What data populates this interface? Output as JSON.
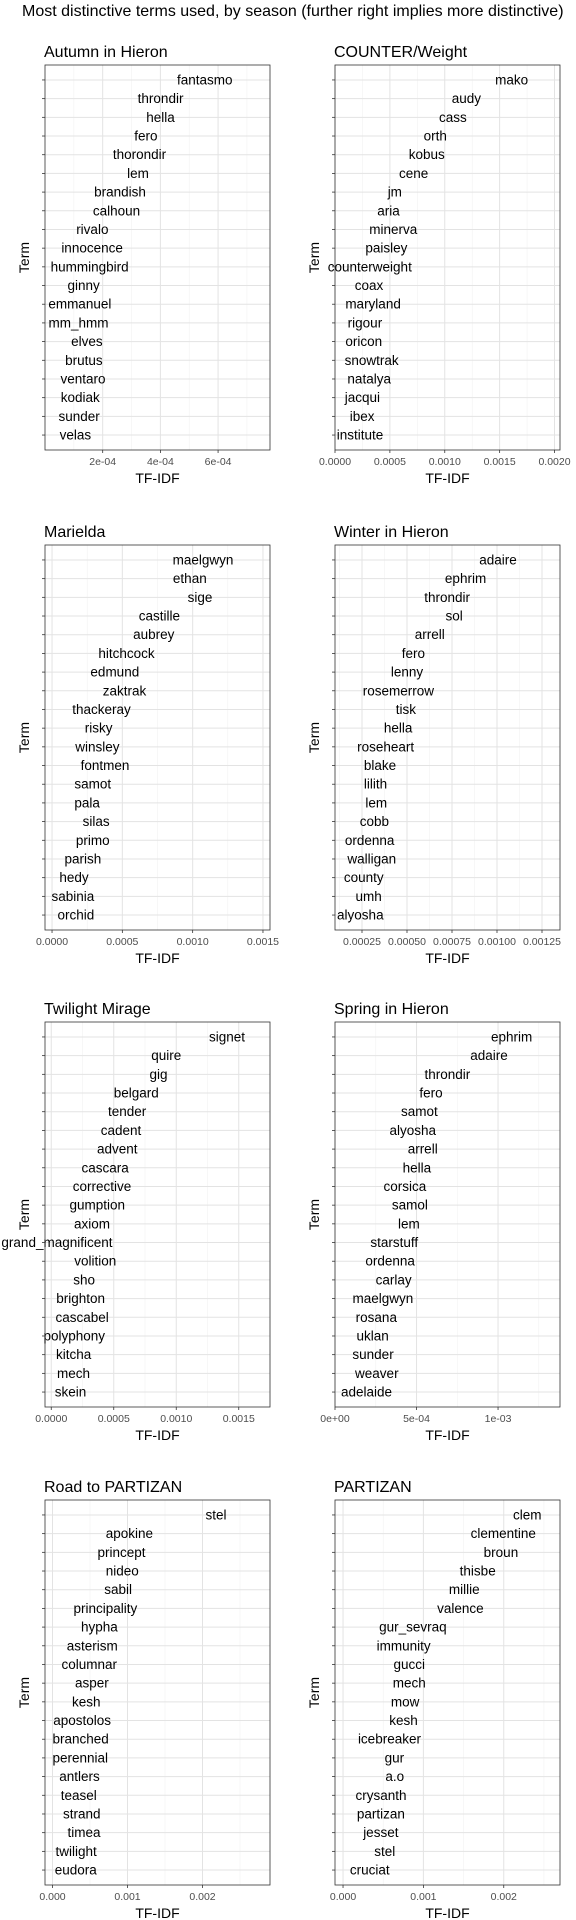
{
  "figure": {
    "title": "Most distinctive terms used, by season (further right implies more distinctive)"
  },
  "chart_data": [
    {
      "type": "bar",
      "orientation": "horizontal",
      "title": "Autumn in Hieron",
      "xlabel": "TF-IDF",
      "ylabel": "Term",
      "xlim": [
        0,
        0.00078
      ],
      "xticks": [
        0.0002,
        0.0004,
        0.0006
      ],
      "xtick_labels": [
        "2e-04",
        "4e-04",
        "6e-04"
      ],
      "grid": true,
      "categories": [
        "fantasmo",
        "throndir",
        "hella",
        "fero",
        "thorondir",
        "lem",
        "brandish",
        "calhoun",
        "rivalo",
        "innocence",
        "hummingbird",
        "ginny",
        "emmanuel",
        "mm_hmm",
        "elves",
        "brutus",
        "ventaro",
        "kodiak",
        "sunder",
        "velas"
      ],
      "values": [
        0.00065,
        0.00048,
        0.00045,
        0.00039,
        0.00042,
        0.00036,
        0.00035,
        0.00033,
        0.00022,
        0.00027,
        0.00029,
        0.00019,
        0.00023,
        0.00022,
        0.0002,
        0.0002,
        0.00021,
        0.00019,
        0.00019,
        0.00016
      ]
    },
    {
      "type": "bar",
      "orientation": "horizontal",
      "title": "COUNTER/Weight",
      "xlabel": "TF-IDF",
      "ylabel": "Term",
      "xlim": [
        0,
        0.00205
      ],
      "xticks": [
        0,
        0.0005,
        0.001,
        0.0015,
        0.002
      ],
      "xtick_labels": [
        "0.0000",
        "0.0005",
        "0.0010",
        "0.0015",
        "0.0020"
      ],
      "grid": true,
      "categories": [
        "mako",
        "audy",
        "cass",
        "orth",
        "kobus",
        "cene",
        "jm",
        "aria",
        "minerva",
        "paisley",
        "counterweight",
        "coax",
        "maryland",
        "rigour",
        "oricon",
        "snowtrak",
        "natalya",
        "jacqui",
        "ibex",
        "institute"
      ],
      "values": [
        0.00176,
        0.00133,
        0.0012,
        0.00102,
        0.001,
        0.00085,
        0.00061,
        0.00059,
        0.00075,
        0.00066,
        0.0007,
        0.00044,
        0.0006,
        0.00043,
        0.00043,
        0.00058,
        0.00051,
        0.00041,
        0.00036,
        0.00044
      ]
    },
    {
      "type": "bar",
      "orientation": "horizontal",
      "title": "Marielda",
      "xlabel": "TF-IDF",
      "ylabel": "Term",
      "xlim": [
        -5e-05,
        0.00155
      ],
      "xticks": [
        0,
        0.0005,
        0.001,
        0.0015
      ],
      "xtick_labels": [
        "0.0000",
        "0.0005",
        "0.0010",
        "0.0015"
      ],
      "grid": true,
      "categories": [
        "maelgwyn",
        "ethan",
        "sige",
        "castille",
        "aubrey",
        "hitchcock",
        "edmund",
        "zaktrak",
        "thackeray",
        "risky",
        "winsley",
        "fontmen",
        "samot",
        "pala",
        "silas",
        "primo",
        "parish",
        "hedy",
        "sabinia",
        "orchid"
      ],
      "values": [
        0.00129,
        0.0011,
        0.00114,
        0.00091,
        0.00087,
        0.00073,
        0.00062,
        0.00067,
        0.00056,
        0.00043,
        0.00048,
        0.00055,
        0.00042,
        0.00034,
        0.00041,
        0.00041,
        0.00035,
        0.00026,
        0.0003,
        0.0003
      ]
    },
    {
      "type": "bar",
      "orientation": "horizontal",
      "title": "Winter in Hieron",
      "xlabel": "TF-IDF",
      "ylabel": "Term",
      "xlim": [
        0.0001,
        0.00135
      ],
      "xticks": [
        0.00025,
        0.0005,
        0.00075,
        0.001,
        0.00125
      ],
      "xtick_labels": [
        "0.00025",
        "0.00050",
        "0.00075",
        "0.00100",
        "0.00125"
      ],
      "grid": true,
      "categories": [
        "adaire",
        "ephrim",
        "throndir",
        "sol",
        "arrell",
        "fero",
        "lenny",
        "rosemerrow",
        "tisk",
        "hella",
        "roseheart",
        "blake",
        "lilith",
        "lem",
        "cobb",
        "ordenna",
        "walligan",
        "county",
        "umh",
        "alyosha"
      ],
      "values": [
        0.00111,
        0.00094,
        0.00085,
        0.00081,
        0.00071,
        0.0006,
        0.00059,
        0.00065,
        0.00055,
        0.00053,
        0.00054,
        0.00044,
        0.00039,
        0.00039,
        0.0004,
        0.00043,
        0.00044,
        0.00037,
        0.00036,
        0.00037
      ]
    },
    {
      "type": "bar",
      "orientation": "horizontal",
      "title": "Twilight Mirage",
      "xlabel": "TF-IDF",
      "ylabel": "Term",
      "xlim": [
        -5e-05,
        0.00175
      ],
      "xticks": [
        0,
        0.0005,
        0.001,
        0.0015
      ],
      "xtick_labels": [
        "0.0000",
        "0.0005",
        "0.0010",
        "0.0015"
      ],
      "grid": true,
      "categories": [
        "signet",
        "quire",
        "gig",
        "belgard",
        "tender",
        "cadent",
        "advent",
        "cascara",
        "corrective",
        "gumption",
        "axiom",
        "grand_magnificent",
        "volition",
        "sho",
        "brighton",
        "cascabel",
        "polyphony",
        "kitcha",
        "mech",
        "skein"
      ],
      "values": [
        0.00155,
        0.00104,
        0.00093,
        0.00086,
        0.00076,
        0.00072,
        0.00069,
        0.00062,
        0.00064,
        0.00059,
        0.00047,
        0.00049,
        0.00052,
        0.00035,
        0.00043,
        0.00046,
        0.00043,
        0.00032,
        0.00031,
        0.00028
      ]
    },
    {
      "type": "bar",
      "orientation": "horizontal",
      "title": "Spring in Hieron",
      "xlabel": "TF-IDF",
      "ylabel": "Term",
      "xlim": [
        0,
        0.00138
      ],
      "xticks": [
        0,
        0.0005,
        0.001
      ],
      "xtick_labels": [
        "0e+00",
        "5e-04",
        "1e-03"
      ],
      "grid": true,
      "categories": [
        "ephrim",
        "adaire",
        "throndir",
        "fero",
        "samot",
        "alyosha",
        "arrell",
        "hella",
        "corsica",
        "samol",
        "lem",
        "starstuff",
        "ordenna",
        "carlay",
        "maelgwyn",
        "rosana",
        "uklan",
        "sunder",
        "weaver",
        "adelaide"
      ],
      "values": [
        0.00121,
        0.00106,
        0.00083,
        0.00066,
        0.00063,
        0.00062,
        0.00063,
        0.00059,
        0.00056,
        0.00057,
        0.00052,
        0.00051,
        0.00049,
        0.00047,
        0.00048,
        0.00038,
        0.00033,
        0.00036,
        0.00039,
        0.00035
      ]
    },
    {
      "type": "bar",
      "orientation": "horizontal",
      "title": "Road to PARTIZAN",
      "xlabel": "TF-IDF",
      "ylabel": "Term",
      "xlim": [
        -0.0001,
        0.0029
      ],
      "xticks": [
        0,
        0.001,
        0.002
      ],
      "xtick_labels": [
        "0.000",
        "0.001",
        "0.002"
      ],
      "grid": true,
      "categories": [
        "stel",
        "apokine",
        "princept",
        "nideo",
        "sabil",
        "principality",
        "hypha",
        "asterism",
        "columnar",
        "asper",
        "kesh",
        "apostolos",
        "branched",
        "perennial",
        "antlers",
        "teasel",
        "strand",
        "timea",
        "twilight",
        "eudora"
      ],
      "values": [
        0.00232,
        0.00134,
        0.00124,
        0.00115,
        0.00106,
        0.00113,
        0.00087,
        0.00087,
        0.00086,
        0.00075,
        0.00064,
        0.00078,
        0.00075,
        0.00074,
        0.00063,
        0.00059,
        0.00064,
        0.00064,
        0.00059,
        0.00059
      ]
    },
    {
      "type": "bar",
      "orientation": "horizontal",
      "title": "PARTIZAN",
      "xlabel": "TF-IDF",
      "ylabel": "Term",
      "xlim": [
        -0.0001,
        0.0027
      ],
      "xticks": [
        0,
        0.001,
        0.002
      ],
      "xtick_labels": [
        "0.000",
        "0.001",
        "0.002"
      ],
      "grid": true,
      "categories": [
        "clem",
        "clementine",
        "broun",
        "thisbe",
        "millie",
        "valence",
        "gur_sevraq",
        "immunity",
        "gucci",
        "mech",
        "mow",
        "kesh",
        "icebreaker",
        "gur",
        "a.o",
        "crysanth",
        "partizan",
        "jesset",
        "stel",
        "cruciat"
      ],
      "values": [
        0.00247,
        0.0024,
        0.00218,
        0.0019,
        0.0017,
        0.00175,
        0.00129,
        0.00109,
        0.00102,
        0.00103,
        0.00095,
        0.00093,
        0.00097,
        0.00076,
        0.00076,
        0.00079,
        0.00077,
        0.00069,
        0.00065,
        0.00058
      ]
    }
  ]
}
